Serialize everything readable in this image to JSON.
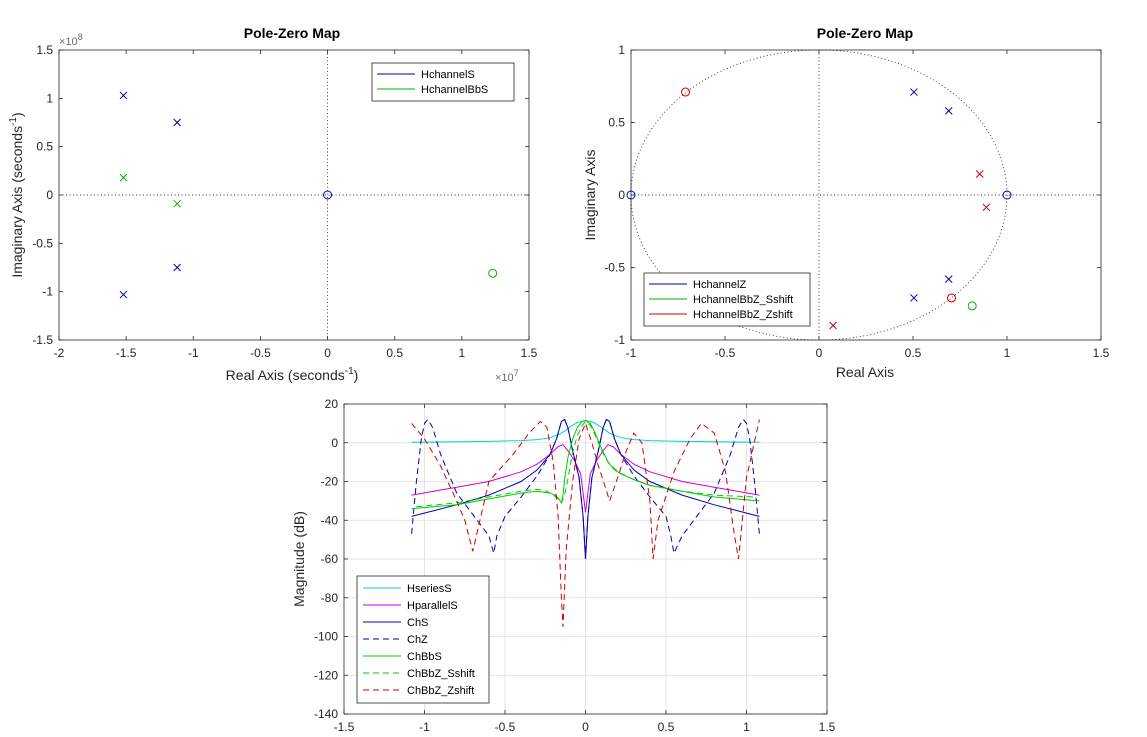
{
  "chart_data": [
    {
      "type": "scatter",
      "title": "Pole-Zero Map",
      "xlabel": "Real Axis (seconds",
      "xlabel_sup": "-1",
      "xlabel_end": ")",
      "ylabel": "Imaginary Axis (seconds",
      "ylabel_sup": "-1",
      "ylabel_end": ")",
      "x_exponent_label": "×10",
      "x_exponent_power": "7",
      "y_exponent_label": "×10",
      "y_exponent_power": "8",
      "xlim": [
        -20000000.0,
        15000000.0
      ],
      "ylim": [
        -150000000.0,
        150000000.0
      ],
      "xticks": [
        -20000000.0,
        -15000000.0,
        -10000000.0,
        -5000000.0,
        0,
        5000000.0,
        10000000.0,
        15000000.0
      ],
      "xtick_labels": [
        "-2",
        "-1.5",
        "-1",
        "-0.5",
        "0",
        "0.5",
        "1",
        "1.5"
      ],
      "yticks": [
        -150000000.0,
        -100000000.0,
        -50000000.0,
        0,
        50000000.0,
        100000000.0,
        150000000.0
      ],
      "ytick_labels": [
        "-1.5",
        "-1",
        "-0.5",
        "0",
        "0.5",
        "1",
        "1.5"
      ],
      "grid": false,
      "zero_lines": true,
      "legend_position": "top-right",
      "series": [
        {
          "name": "HchannelS",
          "color": "#0000b3",
          "poles": [
            [
              -15200000.0,
              103000000.0
            ],
            [
              -15200000.0,
              -103000000.0
            ],
            [
              -11200000.0,
              75000000.0
            ],
            [
              -11200000.0,
              -75000000.0
            ]
          ],
          "zeros": [
            [
              0,
              0
            ]
          ]
        },
        {
          "name": "HchannelBbS",
          "color": "#00b300",
          "poles": [
            [
              -15200000.0,
              18000000.0
            ],
            [
              -11200000.0,
              -9000000.0
            ]
          ],
          "zeros": [
            [
              12300000.0,
              -81000000.0
            ]
          ]
        }
      ]
    },
    {
      "type": "scatter",
      "title": "Pole-Zero Map",
      "xlabel": "Real Axis",
      "ylabel": "Imaginary Axis",
      "xlim": [
        -1,
        1.5
      ],
      "ylim": [
        -1,
        1
      ],
      "xticks": [
        -1,
        -0.5,
        0,
        0.5,
        1,
        1.5
      ],
      "xtick_labels": [
        "-1",
        "-0.5",
        "0",
        "0.5",
        "1",
        "1.5"
      ],
      "yticks": [
        -1,
        -0.5,
        0,
        0.5,
        1
      ],
      "ytick_labels": [
        "-1",
        "-0.5",
        "0",
        "0.5",
        "1"
      ],
      "grid": false,
      "zero_lines": true,
      "unit_circle": true,
      "legend_position": "bottom-left",
      "series": [
        {
          "name": "HchannelZ",
          "color": "#0000b3",
          "poles": [
            [
              0.505,
              0.71
            ],
            [
              0.505,
              -0.71
            ],
            [
              0.69,
              0.58
            ],
            [
              0.69,
              -0.58
            ]
          ],
          "zeros": [
            [
              -1,
              0
            ],
            [
              1,
              0
            ]
          ]
        },
        {
          "name": "HchannelBbZ_Sshift",
          "color": "#00b300",
          "poles": [],
          "zeros": [
            [
              0.815,
              -0.765
            ]
          ]
        },
        {
          "name": "HchannelBbZ_Zshift",
          "color": "#cc0000",
          "poles": [
            [
              0.855,
              0.145
            ],
            [
              0.89,
              -0.085
            ],
            [
              0.075,
              -0.9
            ]
          ],
          "zeros": [
            [
              -0.71,
              0.71
            ],
            [
              0.705,
              -0.71
            ]
          ]
        }
      ]
    },
    {
      "type": "line",
      "title": "",
      "xlabel": "",
      "ylabel": "Magnitude (dB)",
      "xlim": [
        -1.5,
        1.5
      ],
      "ylim": [
        -140,
        20
      ],
      "xticks": [
        -1.5,
        -1,
        -0.5,
        0,
        0.5,
        1,
        1.5
      ],
      "xtick_labels": [
        "-1.5",
        "-1",
        "-0.5",
        "0",
        "0.5",
        "1",
        "1.5"
      ],
      "yticks": [
        -140,
        -120,
        -100,
        -80,
        -60,
        -40,
        -20,
        0,
        20
      ],
      "ytick_labels": [
        "-140",
        "-120",
        "-100",
        "-80",
        "-60",
        "-40",
        "-20",
        "0",
        "20"
      ],
      "grid": true,
      "legend_position": "bottom-left",
      "series": [
        {
          "name": "HseriesS",
          "color": "#00d5d5",
          "dash": "solid",
          "x": [
            -1.08,
            -0.8,
            -0.6,
            -0.4,
            -0.3,
            -0.22,
            -0.16,
            -0.13,
            -0.1,
            -0.05,
            0,
            0.05,
            0.1,
            0.13,
            0.16,
            0.22,
            0.3,
            0.4,
            0.6,
            0.8,
            1.08
          ],
          "y": [
            0.3,
            0.5,
            0.7,
            1.1,
            1.6,
            2.6,
            4.5,
            6,
            8,
            10.5,
            11.5,
            10.5,
            8,
            6,
            4.5,
            2.6,
            1.6,
            1.1,
            0.7,
            0.5,
            0.3
          ]
        },
        {
          "name": "HparallelS",
          "color": "#d000d0",
          "dash": "solid",
          "x": [
            -1.08,
            -0.8,
            -0.6,
            -0.4,
            -0.3,
            -0.22,
            -0.17,
            -0.14,
            -0.11,
            -0.07,
            -0.03,
            0,
            0.03,
            0.07,
            0.11,
            0.14,
            0.17,
            0.22,
            0.3,
            0.4,
            0.6,
            0.8,
            1.08
          ],
          "y": [
            -27,
            -23,
            -20,
            -15,
            -11,
            -6,
            -2,
            -1,
            -4,
            -9,
            -16,
            -36,
            -16,
            -9,
            -4,
            -1,
            -2,
            -6,
            -11,
            -15,
            -20,
            -23,
            -27
          ]
        },
        {
          "name": "ChS",
          "color": "#0000b3",
          "dash": "solid",
          "x": [
            -1.08,
            -0.8,
            -0.6,
            -0.4,
            -0.3,
            -0.22,
            -0.18,
            -0.15,
            -0.13,
            -0.11,
            -0.08,
            -0.04,
            -0.015,
            0,
            0.015,
            0.04,
            0.08,
            0.11,
            0.13,
            0.15,
            0.18,
            0.22,
            0.3,
            0.4,
            0.6,
            0.8,
            1.08
          ],
          "y": [
            -38,
            -32,
            -27,
            -20,
            -14,
            -6,
            2,
            11,
            12,
            8,
            -4,
            -18,
            -38,
            -60,
            -38,
            -18,
            -4,
            8,
            12,
            11,
            2,
            -6,
            -14,
            -20,
            -27,
            -32,
            -38
          ]
        },
        {
          "name": "ChZ",
          "color": "#0000b3",
          "dash": "dashed",
          "x": [
            -1.08,
            -1.05,
            -1.02,
            -1.0,
            -0.98,
            -0.95,
            -0.9,
            -0.8,
            -0.7,
            -0.6,
            -0.57,
            -0.55,
            -0.5,
            -0.4,
            -0.3,
            -0.22,
            -0.18,
            -0.15,
            -0.13,
            -0.11,
            -0.08,
            -0.04,
            -0.015,
            0,
            0.015,
            0.04,
            0.08,
            0.11,
            0.13,
            0.15,
            0.18,
            0.22,
            0.3,
            0.4,
            0.5,
            0.53,
            0.55,
            0.6,
            0.7,
            0.8,
            0.9,
            0.95,
            0.98,
            1.0,
            1.02,
            1.05,
            1.08
          ],
          "y": [
            -47,
            -20,
            2,
            10,
            12,
            8,
            -6,
            -26,
            -37,
            -48,
            -57,
            -48,
            -38,
            -28,
            -17,
            -6,
            2,
            11,
            12,
            8,
            -4,
            -18,
            -38,
            -60,
            -38,
            -18,
            -4,
            8,
            12,
            11,
            2,
            -6,
            -17,
            -28,
            -38,
            -48,
            -57,
            -48,
            -37,
            -26,
            -6,
            8,
            12,
            10,
            2,
            -20,
            -47
          ]
        },
        {
          "name": "ChBbS",
          "color": "#00cc00",
          "dash": "solid",
          "x": [
            -1.08,
            -0.8,
            -0.6,
            -0.4,
            -0.3,
            -0.22,
            -0.19,
            -0.17,
            -0.15,
            -0.14,
            -0.13,
            -0.11,
            -0.08,
            -0.05,
            -0.02,
            0,
            0.03,
            0.06,
            0.1,
            0.14,
            0.18,
            0.22,
            0.3,
            0.4,
            0.6,
            0.8,
            1.08
          ],
          "y": [
            -34,
            -32,
            -29,
            -26,
            -25,
            -26,
            -27,
            -28.5,
            -31,
            -27,
            -19,
            -8,
            2,
            8,
            11,
            11.5,
            10,
            5,
            -3,
            -10,
            -14,
            -16,
            -19,
            -22,
            -25,
            -28,
            -30
          ]
        },
        {
          "name": "ChBbZ_Sshift",
          "color": "#00cc00",
          "dash": "dashed",
          "x": [
            -1.05,
            -0.8,
            -0.6,
            -0.4,
            -0.3,
            -0.24,
            -0.2,
            -0.17,
            -0.15,
            -0.13,
            -0.11,
            -0.08,
            -0.05,
            -0.02,
            0,
            0.03,
            0.06,
            0.1,
            0.14,
            0.2,
            0.3,
            0.4,
            0.6,
            0.8,
            1.05
          ],
          "y": [
            -33,
            -31,
            -28,
            -25,
            -24,
            -25,
            -27,
            -29,
            -31,
            -27,
            -19,
            -5,
            4,
            9,
            11,
            9,
            4,
            -4,
            -10,
            -15,
            -19,
            -22,
            -25,
            -27,
            -28
          ]
        },
        {
          "name": "ChBbZ_Zshift",
          "color": "#cc0000",
          "dash": "dashed",
          "x": [
            -1.08,
            -1.0,
            -0.9,
            -0.8,
            -0.75,
            -0.7,
            -0.6,
            -0.45,
            -0.35,
            -0.28,
            -0.24,
            -0.2,
            -0.17,
            -0.15,
            -0.14,
            -0.12,
            -0.08,
            -0.04,
            0,
            0.04,
            0.08,
            0.12,
            0.15,
            0.2,
            0.25,
            0.3,
            0.35,
            0.4,
            0.42,
            0.45,
            0.55,
            0.65,
            0.72,
            0.8,
            0.87,
            0.92,
            0.95,
            1.0,
            1.08
          ],
          "y": [
            10,
            2,
            -12,
            -30,
            -40,
            -56,
            -20,
            -6,
            5,
            11,
            8,
            -10,
            -38,
            -80,
            -95,
            -55,
            -20,
            2,
            10,
            0,
            -12,
            -22,
            -30,
            -18,
            -5,
            5,
            0,
            -30,
            -60,
            -40,
            -15,
            2,
            10,
            5,
            -15,
            -45,
            -60,
            -18,
            12
          ]
        }
      ]
    }
  ]
}
